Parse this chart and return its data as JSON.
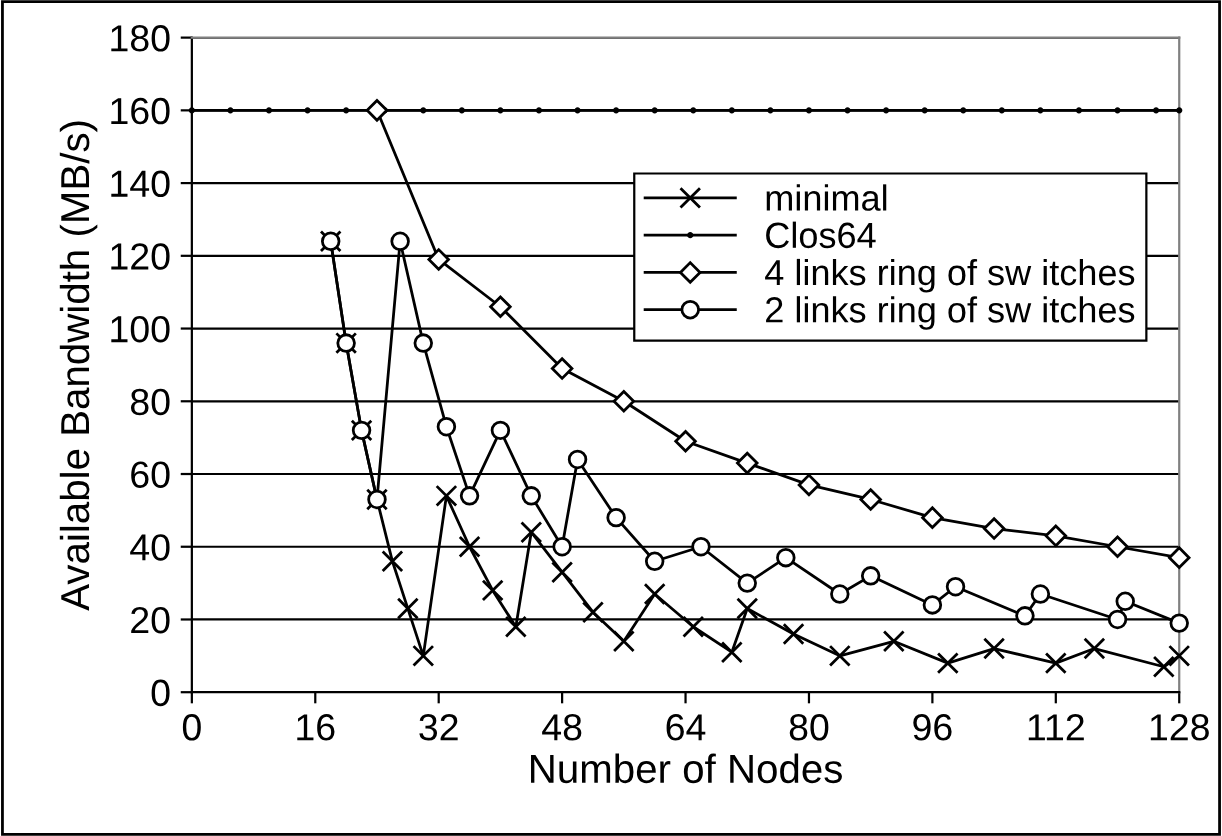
{
  "chart_data": {
    "type": "line",
    "xlabel": "Number of Nodes",
    "ylabel": "Available Bandwidth (MB/s)",
    "xlim": [
      0,
      128
    ],
    "xticks": [
      0,
      16,
      32,
      48,
      64,
      80,
      96,
      112,
      128
    ],
    "ylim": [
      0,
      180
    ],
    "yticks": [
      0,
      20,
      40,
      60,
      80,
      100,
      120,
      140,
      160,
      180
    ],
    "grid": "y",
    "legend": "top right",
    "series": [
      {
        "name": "minimal",
        "color": "#000000",
        "marker": "cross",
        "x": [
          18,
          20,
          22,
          24,
          26,
          28,
          30,
          33,
          36,
          39,
          42,
          44,
          48,
          52,
          56,
          60,
          65,
          70,
          72,
          78,
          84,
          91,
          98,
          104,
          112,
          117,
          126,
          128
        ],
        "values": [
          124,
          96,
          72,
          53,
          36,
          23,
          10,
          54,
          40,
          28,
          18,
          44,
          33,
          22,
          14,
          27,
          18,
          11,
          23,
          16,
          10,
          14,
          8,
          12,
          8,
          12,
          7,
          10
        ]
      },
      {
        "name": "Clos64",
        "color": "#000000",
        "marker": "dot",
        "x": [
          0,
          5,
          10,
          15,
          20,
          25,
          30,
          35,
          40,
          45,
          50,
          55,
          60,
          65,
          70,
          75,
          80,
          85,
          90,
          95,
          100,
          105,
          110,
          115,
          120,
          125,
          128
        ],
        "values": [
          160,
          160,
          160,
          160,
          160,
          160,
          160,
          160,
          160,
          160,
          160,
          160,
          160,
          160,
          160,
          160,
          160,
          160,
          160,
          160,
          160,
          160,
          160,
          160,
          160,
          160,
          160
        ]
      },
      {
        "name": "4 links ring of sw itches",
        "color": "#000000",
        "marker": "diamond",
        "x": [
          24,
          32,
          40,
          48,
          56,
          64,
          72,
          80,
          88,
          96,
          104,
          112,
          120,
          128
        ],
        "values": [
          160,
          119,
          106,
          89,
          80,
          69,
          63,
          57,
          53,
          48,
          45,
          43,
          40,
          37
        ]
      },
      {
        "name": "2 links ring of sw itches",
        "color": "#000000",
        "marker": "circle",
        "x": [
          18,
          20,
          22,
          24,
          27,
          30,
          33,
          36,
          40,
          44,
          48,
          50,
          55,
          60,
          66,
          72,
          77,
          84,
          88,
          96,
          99,
          108,
          110,
          120,
          121,
          128
        ],
        "values": [
          124,
          96,
          72,
          53,
          124,
          96,
          73,
          54,
          72,
          54,
          40,
          64,
          48,
          36,
          40,
          30,
          37,
          27,
          32,
          24,
          29,
          21,
          27,
          20,
          25,
          19
        ]
      }
    ]
  }
}
